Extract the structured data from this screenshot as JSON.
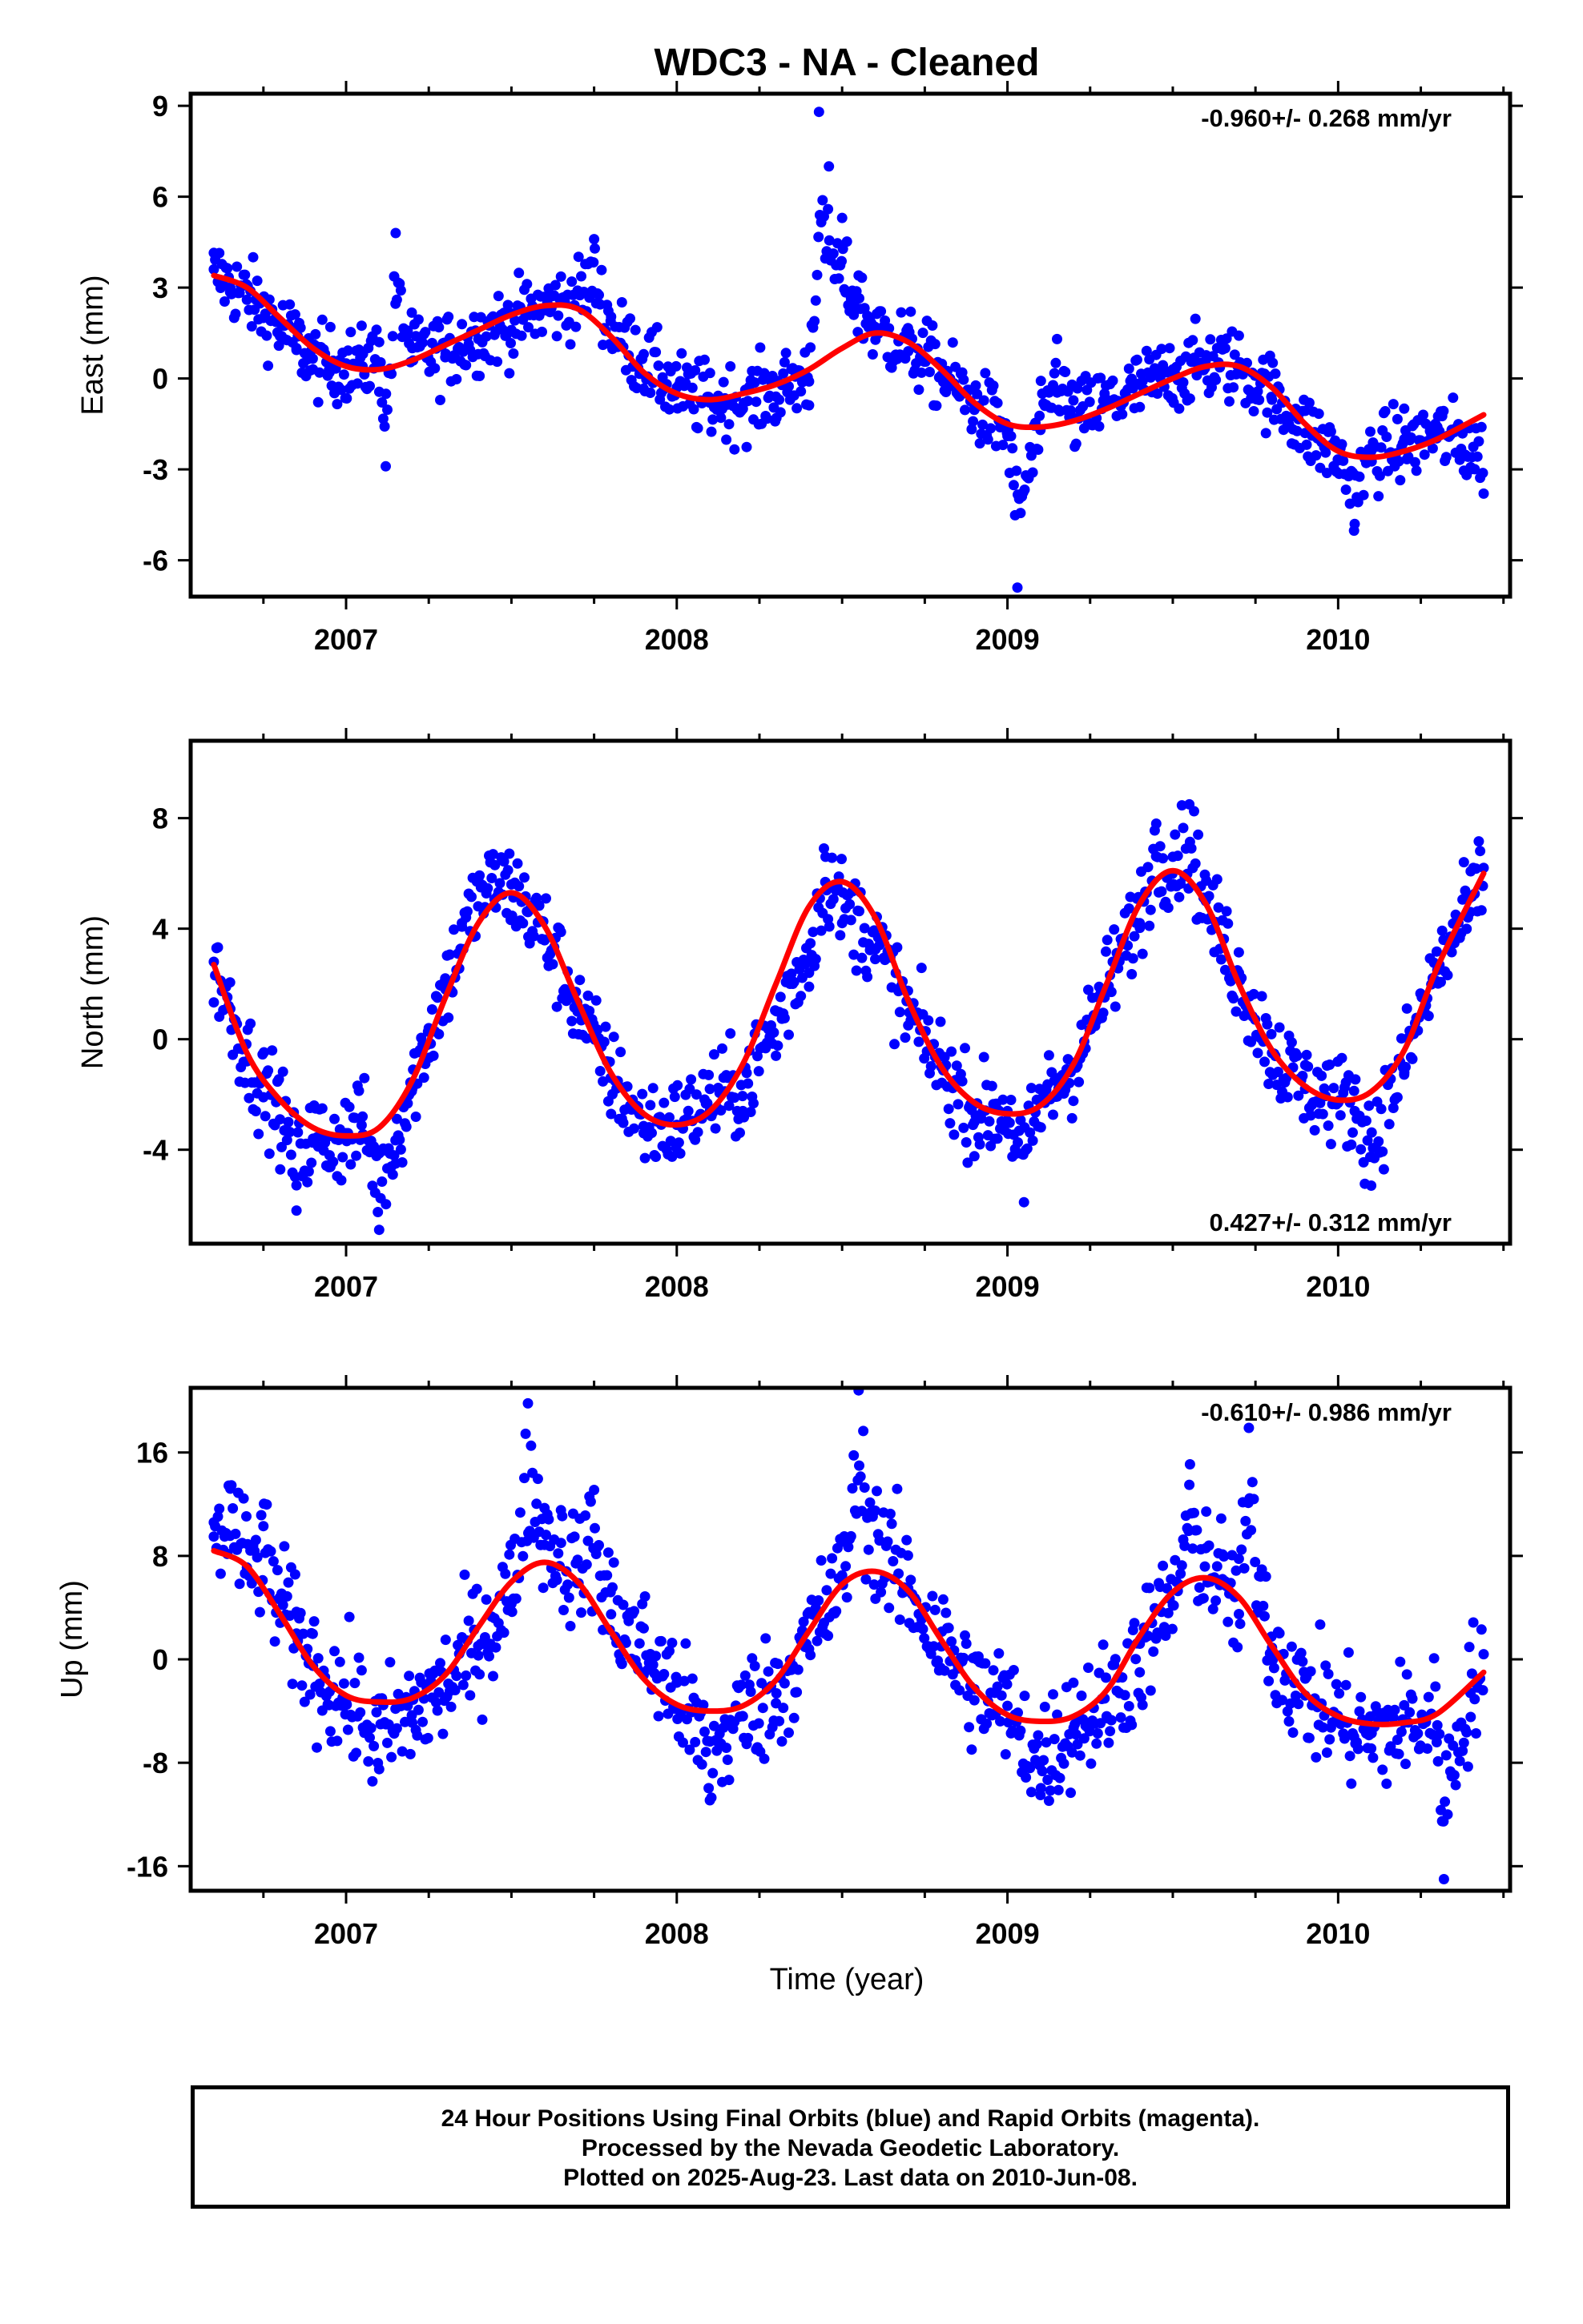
{
  "title": "WDC3  - NA - Cleaned",
  "colors": {
    "data_points": "#0000ff",
    "model_fit": "#ff0000",
    "frame": "#000000"
  },
  "xlabel": "Time (year)",
  "chart_data": [
    {
      "type": "scatter",
      "component": "east",
      "ylabel": "East (mm)",
      "rate_label": "-0.960+/- 0.268 mm/yr",
      "rate_position": "top-right",
      "xlim": [
        2006.53,
        2010.52
      ],
      "ylim": [
        -7.2,
        9.4
      ],
      "x_ticks": [
        2007,
        2008,
        2009,
        2010
      ],
      "x_tick_labels": [
        "2007",
        "2008",
        "2009",
        "2010"
      ],
      "y_ticks": [
        -6,
        -3,
        0,
        3,
        6,
        9
      ],
      "y_tick_labels": [
        "-6",
        "-3",
        "0",
        "3",
        "6",
        "9"
      ],
      "series": [
        {
          "kind": "observations",
          "x": [
            2006.6,
            2006.65,
            2006.7,
            2006.75,
            2006.8,
            2006.85,
            2006.9,
            2006.95,
            2007.0,
            2007.05,
            2007.1,
            2007.12,
            2007.15,
            2007.2,
            2007.3,
            2007.4,
            2007.5,
            2007.6,
            2007.7,
            2007.75,
            2007.8,
            2007.9,
            2008.0,
            2008.1,
            2008.2,
            2008.3,
            2008.4,
            2008.43,
            2008.46,
            2008.5,
            2008.55,
            2008.6,
            2008.7,
            2008.8,
            2008.9,
            2009.0,
            2009.03,
            2009.1,
            2009.15,
            2009.2,
            2009.3,
            2009.4,
            2009.5,
            2009.6,
            2009.7,
            2009.8,
            2009.9,
            2010.0,
            2010.05,
            2010.1,
            2010.2,
            2010.3,
            2010.4,
            2010.44
          ],
          "y": [
            3.6,
            3.0,
            2.6,
            2.0,
            1.4,
            1.0,
            0.3,
            0.2,
            0.5,
            0.4,
            1.2,
            -2.9,
            4.8,
            1.0,
            0.7,
            1.3,
            1.6,
            2.3,
            2.9,
            4.6,
            1.9,
            0.8,
            -0.3,
            -0.8,
            -1.0,
            -0.6,
            -0.1,
            8.8,
            7.0,
            5.3,
            3.4,
            1.7,
            0.9,
            0.1,
            -0.9,
            -1.9,
            -6.9,
            -1.7,
            1.3,
            -1.3,
            -0.7,
            -0.2,
            0.3,
            0.6,
            0.4,
            -0.7,
            -1.8,
            -2.7,
            -4.8,
            -2.4,
            -2.0,
            -1.6,
            -3.0,
            -3.8
          ]
        },
        {
          "kind": "model",
          "x": [
            2006.6,
            2006.7,
            2006.8,
            2006.9,
            2007.0,
            2007.1,
            2007.2,
            2007.3,
            2007.4,
            2007.5,
            2007.6,
            2007.7,
            2007.8,
            2007.9,
            2008.0,
            2008.1,
            2008.2,
            2008.3,
            2008.4,
            2008.5,
            2008.6,
            2008.7,
            2008.8,
            2008.9,
            2009.0,
            2009.1,
            2009.2,
            2009.3,
            2009.4,
            2009.5,
            2009.6,
            2009.7,
            2009.8,
            2009.9,
            2010.0,
            2010.1,
            2010.2,
            2010.3,
            2010.44
          ],
          "y": [
            3.4,
            3.0,
            2.0,
            1.0,
            0.4,
            0.3,
            0.6,
            1.1,
            1.6,
            2.1,
            2.4,
            2.3,
            1.4,
            0.2,
            -0.5,
            -0.7,
            -0.5,
            -0.2,
            0.3,
            1.0,
            1.5,
            1.2,
            0.3,
            -0.8,
            -1.5,
            -1.6,
            -1.4,
            -1.0,
            -0.5,
            0.0,
            0.4,
            0.4,
            -0.3,
            -1.5,
            -2.4,
            -2.6,
            -2.4,
            -2.0,
            -1.2
          ]
        }
      ]
    },
    {
      "type": "scatter",
      "component": "north",
      "ylabel": "North (mm)",
      "rate_label": "0.427+/- 0.312 mm/yr",
      "rate_position": "bottom-right",
      "xlim": [
        2006.53,
        2010.52
      ],
      "ylim": [
        -7.4,
        10.8
      ],
      "x_ticks": [
        2007,
        2008,
        2009,
        2010
      ],
      "x_tick_labels": [
        "2007",
        "2008",
        "2009",
        "2010"
      ],
      "y_ticks": [
        -4,
        0,
        4,
        8
      ],
      "y_tick_labels": [
        "-4",
        "0",
        "4",
        "8"
      ],
      "series": [
        {
          "kind": "observations",
          "x": [
            2006.6,
            2006.65,
            2006.7,
            2006.75,
            2006.8,
            2006.85,
            2006.9,
            2006.95,
            2007.0,
            2007.05,
            2007.1,
            2007.15,
            2007.2,
            2007.25,
            2007.3,
            2007.35,
            2007.4,
            2007.45,
            2007.5,
            2007.55,
            2007.6,
            2007.7,
            2007.8,
            2007.9,
            2008.0,
            2008.1,
            2008.2,
            2008.3,
            2008.4,
            2008.45,
            2008.5,
            2008.6,
            2008.7,
            2008.8,
            2008.9,
            2009.0,
            2009.05,
            2009.1,
            2009.2,
            2009.3,
            2009.4,
            2009.45,
            2009.5,
            2009.55,
            2009.6,
            2009.7,
            2009.8,
            2009.9,
            2010.0,
            2010.05,
            2010.1,
            2010.2,
            2010.3,
            2010.4,
            2010.44
          ],
          "y": [
            2.8,
            1.1,
            -0.8,
            -2.1,
            -2.9,
            -6.2,
            -3.6,
            -4.2,
            -3.4,
            -2.8,
            -6.9,
            -4.5,
            -1.8,
            0.4,
            2.2,
            4.2,
            5.8,
            6.3,
            5.6,
            4.6,
            3.6,
            1.0,
            -1.4,
            -3.4,
            -3.1,
            -1.8,
            -2.6,
            -0.6,
            1.9,
            6.6,
            4.2,
            2.9,
            0.5,
            -1.0,
            -3.0,
            -2.6,
            -5.9,
            -2.3,
            -1.0,
            1.8,
            4.2,
            7.8,
            6.6,
            8.5,
            5.0,
            2.4,
            -0.5,
            -1.8,
            -2.3,
            -2.6,
            -5.3,
            -1.2,
            2.5,
            4.6,
            6.2
          ]
        },
        {
          "kind": "model",
          "x": [
            2006.6,
            2006.7,
            2006.8,
            2006.9,
            2007.0,
            2007.1,
            2007.2,
            2007.3,
            2007.4,
            2007.5,
            2007.6,
            2007.7,
            2007.8,
            2007.9,
            2008.0,
            2008.1,
            2008.2,
            2008.3,
            2008.4,
            2008.5,
            2008.6,
            2008.7,
            2008.8,
            2008.9,
            2009.0,
            2009.1,
            2009.2,
            2009.3,
            2009.4,
            2009.5,
            2009.6,
            2009.7,
            2009.8,
            2009.9,
            2010.0,
            2010.1,
            2010.2,
            2010.3,
            2010.44
          ],
          "y": [
            2.7,
            -0.5,
            -2.2,
            -3.2,
            -3.5,
            -3.2,
            -1.5,
            1.5,
            4.2,
            5.3,
            4.1,
            1.4,
            -1.2,
            -2.7,
            -3.1,
            -2.6,
            -0.9,
            2.0,
            4.8,
            5.7,
            4.4,
            1.4,
            -1.0,
            -2.3,
            -2.7,
            -2.4,
            -0.9,
            2.0,
            4.9,
            6.1,
            4.9,
            2.0,
            -0.4,
            -1.7,
            -2.2,
            -1.9,
            -0.4,
            2.6,
            6.0
          ]
        }
      ]
    },
    {
      "type": "scatter",
      "component": "up",
      "ylabel": "Up (mm)",
      "rate_label": "-0.610+/- 0.986 mm/yr",
      "rate_position": "top-right",
      "xlim": [
        2006.53,
        2010.52
      ],
      "ylim": [
        -17.9,
        21.0
      ],
      "x_ticks": [
        2007,
        2008,
        2009,
        2010
      ],
      "x_tick_labels": [
        "2007",
        "2008",
        "2009",
        "2010"
      ],
      "y_ticks": [
        -16,
        -8,
        0,
        8,
        16
      ],
      "y_tick_labels": [
        "-16",
        "-8",
        "0",
        "8",
        "16"
      ],
      "series": [
        {
          "kind": "observations",
          "x": [
            2006.6,
            2006.65,
            2006.7,
            2006.75,
            2006.8,
            2006.85,
            2006.9,
            2006.95,
            2007.0,
            2007.1,
            2007.2,
            2007.3,
            2007.4,
            2007.5,
            2007.55,
            2007.6,
            2007.65,
            2007.7,
            2007.75,
            2007.8,
            2007.9,
            2008.0,
            2008.1,
            2008.2,
            2008.3,
            2008.4,
            2008.5,
            2008.55,
            2008.6,
            2008.7,
            2008.8,
            2008.9,
            2009.0,
            2009.1,
            2009.2,
            2009.3,
            2009.4,
            2009.5,
            2009.55,
            2009.6,
            2009.65,
            2009.7,
            2009.73,
            2009.8,
            2009.9,
            2010.0,
            2010.1,
            2010.2,
            2010.3,
            2010.32,
            2010.4,
            2010.44
          ],
          "y": [
            9.5,
            13.2,
            7.1,
            10.3,
            4.8,
            2.0,
            -0.5,
            -2.5,
            -3.3,
            -8.5,
            -4.9,
            -3.0,
            0.3,
            4.3,
            19.8,
            11.7,
            9.0,
            7.7,
            13.1,
            5.2,
            2.4,
            -1.8,
            -10.9,
            -4.4,
            -3.4,
            0.8,
            6.5,
            20.8,
            11.5,
            5.5,
            1.0,
            -2.3,
            -3.6,
            -10.5,
            -5.3,
            -4.4,
            -1.0,
            4.2,
            13.5,
            8.6,
            6.2,
            3.5,
            17.9,
            0.9,
            -2.8,
            -4.6,
            -6.9,
            -4.9,
            -5.1,
            -17.0,
            -2.6,
            0.4
          ]
        },
        {
          "kind": "model",
          "x": [
            2006.6,
            2006.7,
            2006.8,
            2006.9,
            2007.0,
            2007.1,
            2007.2,
            2007.3,
            2007.4,
            2007.5,
            2007.6,
            2007.7,
            2007.8,
            2007.9,
            2008.0,
            2008.1,
            2008.2,
            2008.3,
            2008.4,
            2008.5,
            2008.6,
            2008.7,
            2008.8,
            2008.9,
            2009.0,
            2009.1,
            2009.2,
            2009.3,
            2009.4,
            2009.5,
            2009.6,
            2009.7,
            2009.8,
            2009.9,
            2010.0,
            2010.1,
            2010.2,
            2010.3,
            2010.44
          ],
          "y": [
            8.4,
            7.2,
            3.5,
            -0.5,
            -2.8,
            -3.3,
            -3.0,
            -1.2,
            2.5,
            6.0,
            7.5,
            6.0,
            2.2,
            -1.5,
            -3.5,
            -4.0,
            -3.6,
            -1.6,
            2.2,
            5.8,
            6.8,
            5.3,
            1.5,
            -2.2,
            -4.3,
            -4.8,
            -4.4,
            -2.4,
            1.8,
            5.2,
            6.3,
            4.8,
            1.0,
            -2.6,
            -4.4,
            -5.0,
            -4.9,
            -4.2,
            -1.0
          ]
        }
      ]
    }
  ],
  "caption": {
    "line1": "24 Hour Positions Using Final Orbits (blue) and Rapid Orbits (magenta).",
    "line2": "Processed by the Nevada Geodetic Laboratory.",
    "line3": "Plotted on 2025-Aug-23. Last data on 2010-Jun-08."
  }
}
